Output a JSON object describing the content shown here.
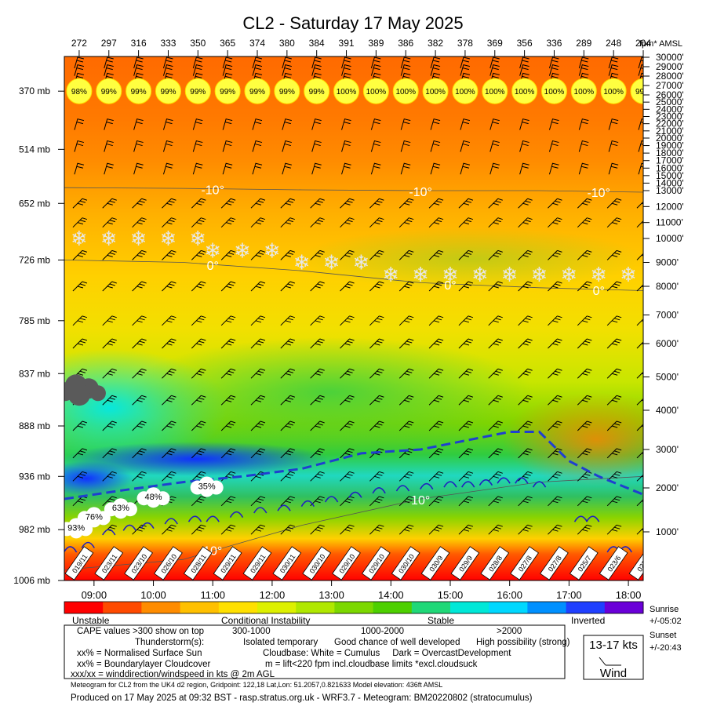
{
  "chart_data": {
    "type": "heatmap",
    "title": "CL2 - Saturday 17 May 2025",
    "top_values": [
      272,
      297,
      316,
      333,
      350,
      365,
      374,
      380,
      384,
      391,
      389,
      386,
      382,
      378,
      369,
      356,
      336,
      289,
      248,
      204
    ],
    "top_unit_label": "fpm* AMSL",
    "cloud_cover_pct": [
      "98%",
      "99%",
      "99%",
      "99%",
      "99%",
      "99%",
      "99%",
      "99%",
      "99%",
      "100%",
      "100%",
      "100%",
      "100%",
      "100%",
      "100%",
      "100%",
      "100%",
      "100%",
      "100%",
      "99%"
    ],
    "pressure_labels": [
      {
        "label": "370 mb",
        "ft": 26400
      },
      {
        "label": "514 mb",
        "ft": 18500
      },
      {
        "label": "652 mb",
        "ft": 12200
      },
      {
        "label": "726 mb",
        "ft": 9100
      },
      {
        "label": "785 mb",
        "ft": 6800
      },
      {
        "label": "837 mb",
        "ft": 5100
      },
      {
        "label": "888 mb",
        "ft": 3600
      },
      {
        "label": "936 mb",
        "ft": 2300
      },
      {
        "label": "982 mb",
        "ft": 1050
      },
      {
        "label": "1006 mb",
        "ft": 436
      }
    ],
    "altitude_ticks": [
      {
        "label": "30000'",
        "ft": 30000
      },
      {
        "label": "29000'",
        "ft": 29000
      },
      {
        "label": "28000'",
        "ft": 28000
      },
      {
        "label": "27000'",
        "ft": 27000
      },
      {
        "label": "26000'",
        "ft": 26000
      },
      {
        "label": "25000'",
        "ft": 25000
      },
      {
        "label": "24000'",
        "ft": 24000
      },
      {
        "label": "23000'",
        "ft": 23000
      },
      {
        "label": "22000'",
        "ft": 22000
      },
      {
        "label": "21000'",
        "ft": 21000
      },
      {
        "label": "20000'",
        "ft": 20000
      },
      {
        "label": "19000'",
        "ft": 19000
      },
      {
        "label": "18000'",
        "ft": 18000
      },
      {
        "label": "17000'",
        "ft": 17000
      },
      {
        "label": "16000'",
        "ft": 16000
      },
      {
        "label": "15000'",
        "ft": 15000
      },
      {
        "label": "14000'",
        "ft": 14000
      },
      {
        "label": "13000'",
        "ft": 13000
      },
      {
        "label": "12000'",
        "ft": 12000
      },
      {
        "label": "11000'",
        "ft": 11000
      },
      {
        "label": "10000'",
        "ft": 10000
      },
      {
        "label": "9000'",
        "ft": 9000
      },
      {
        "label": "8000'",
        "ft": 8000
      },
      {
        "label": "7000'",
        "ft": 7000
      },
      {
        "label": "6000'",
        "ft": 6000
      },
      {
        "label": "5000'",
        "ft": 5000
      },
      {
        "label": "4000'",
        "ft": 4000
      },
      {
        "label": "3000'",
        "ft": 3000
      },
      {
        "label": "2000'",
        "ft": 2000
      },
      {
        "label": "1000'",
        "ft": 1000
      }
    ],
    "time_labels": [
      "09:00",
      "10:00",
      "11:00",
      "12:00",
      "13:00",
      "14:00",
      "15:00",
      "16:00",
      "17:00",
      "18:00"
    ],
    "time_range": [
      8.5,
      18.25
    ],
    "surface_wind": [
      "019/11",
      "023/11",
      "023/10",
      "026/10",
      "028/11",
      "029/11",
      "029/11",
      "030/11",
      "030/10",
      "029/10",
      "029/10",
      "030/10",
      "030/9",
      "029/9",
      "028/8",
      "027/8",
      "027/8",
      "025/7",
      "023/6",
      "022/6"
    ],
    "isotherms": [
      {
        "label": "-10°",
        "points": [
          [
            8.5,
            13400
          ],
          [
            10.5,
            13300
          ],
          [
            12.5,
            13100
          ],
          [
            14.5,
            13000
          ],
          [
            16.5,
            13000
          ],
          [
            18.25,
            12900
          ]
        ],
        "label_times": [
          11.0,
          14.5,
          17.5
        ]
      },
      {
        "label": "0°",
        "points": [
          [
            8.5,
            9100
          ],
          [
            10.5,
            9000
          ],
          [
            12.5,
            8650
          ],
          [
            14.5,
            8150
          ],
          [
            16.5,
            7950
          ],
          [
            18.25,
            7850
          ]
        ],
        "label_times": [
          11.0,
          15.0,
          17.5
        ]
      },
      {
        "label": "10°",
        "points": [
          [
            8.5,
            560
          ],
          [
            10.5,
            680
          ],
          [
            12.5,
            1150
          ],
          [
            14.5,
            1750
          ],
          [
            16.5,
            2150
          ],
          [
            18.25,
            2300
          ]
        ],
        "label_times": [
          11.0,
          14.5
        ]
      }
    ],
    "blh_line": [
      [
        8.5,
        1750
      ],
      [
        9.5,
        1950
      ],
      [
        10.5,
        2150
      ],
      [
        11.5,
        2300
      ],
      [
        12.5,
        2500
      ],
      [
        13.5,
        2900
      ],
      [
        14.5,
        3000
      ],
      [
        15.5,
        3300
      ],
      [
        16.0,
        3450
      ],
      [
        16.5,
        3450
      ],
      [
        17.0,
        2700
      ],
      [
        17.5,
        2300
      ],
      [
        18.25,
        1850
      ]
    ],
    "blh_color": "#1f3fd0",
    "snow_flakes": [
      [
        8.75,
        10000
      ],
      [
        9.25,
        10000
      ],
      [
        9.75,
        10000
      ],
      [
        10.25,
        10000
      ],
      [
        10.75,
        10000
      ],
      [
        11.0,
        9500
      ],
      [
        11.5,
        9500
      ],
      [
        12.0,
        9500
      ],
      [
        12.5,
        9000
      ],
      [
        13.0,
        9000
      ],
      [
        13.5,
        9000
      ],
      [
        14.0,
        8500
      ],
      [
        14.5,
        8500
      ],
      [
        15.0,
        8500
      ],
      [
        15.5,
        8500
      ],
      [
        16.0,
        8500
      ],
      [
        16.5,
        8500
      ],
      [
        17.0,
        8500
      ],
      [
        17.5,
        8500
      ],
      [
        18.0,
        8500
      ]
    ],
    "cumulus_labels": [
      {
        "label": "35%",
        "time": 10.9,
        "ft": 2050
      },
      {
        "label": "48%",
        "time": 10.0,
        "ft": 1800
      },
      {
        "label": "63%",
        "time": 9.45,
        "ft": 1550
      },
      {
        "label": "76%",
        "time": 9.0,
        "ft": 1350
      },
      {
        "label": "93%",
        "time": 8.7,
        "ft": 1100
      }
    ],
    "dark_cloud": {
      "time": 8.75,
      "ft": 4700
    },
    "thermal_arcs": [
      [
        [
          8.6,
          800
        ],
        [
          8.9,
          850
        ]
      ],
      [
        [
          9.25,
          1000
        ],
        [
          9.6,
          1100
        ],
        [
          9.9,
          1150
        ],
        [
          10.3,
          1250
        ],
        [
          10.7,
          1300
        ],
        [
          11.0,
          1300
        ],
        [
          11.4,
          1400
        ],
        [
          11.8,
          1500
        ],
        [
          12.2,
          1550
        ],
        [
          12.6,
          1650
        ],
        [
          13.0,
          1750
        ],
        [
          13.4,
          1850
        ],
        [
          13.8,
          1950
        ],
        [
          14.2,
          2000
        ],
        [
          14.6,
          2050
        ],
        [
          15.0,
          2100
        ],
        [
          15.3,
          2100
        ],
        [
          15.6,
          2150
        ],
        [
          15.9,
          2200
        ],
        [
          16.2,
          2200
        ],
        [
          16.5,
          2100
        ]
      ],
      [
        [
          17.2,
          1300
        ],
        [
          17.4,
          1300
        ]
      ],
      [
        [
          17.75,
          800
        ],
        [
          17.95,
          800
        ]
      ]
    ],
    "colorbar_colors": [
      "#ff0000",
      "#ff4a00",
      "#ff8c00",
      "#ffc000",
      "#ffe000",
      "#ddf000",
      "#b0e800",
      "#7cd800",
      "#4dd000",
      "#20d878",
      "#00e8d8",
      "#00d8ff",
      "#0090ff",
      "#2040ff",
      "#6a00d8"
    ],
    "colorbar_labels": {
      "unstable": "Unstable",
      "conditional": "Conditional Instability",
      "stable": "Stable",
      "inverted": "Inverted"
    },
    "legend": {
      "cape": "CAPE values >300 show on top",
      "cape_ranges": [
        "300-1000",
        "1000-2000",
        ">2000"
      ],
      "thunder_label": "Thunderstorm(s):",
      "thunder_levels": [
        "Isolated temporary",
        "Good chance of well developed",
        "High possibility (strong)"
      ],
      "surface_sun": "xx% = Normalised Surface Sun",
      "cloudbase": "Cloudbase: White = Cumulus     Dark = OvercastDevelopment",
      "bl_cloud": "xx% = Boundarylayer Cloudcover",
      "lift": "m = lift<220 fpm incl.cloudbase limits *excl.cloudsuck",
      "wind_note": "xxx/xx = winddirection/windspeed in kts @ 2m AGL",
      "wind_box_value": "13-17 kts",
      "wind_box_label": "Wind"
    },
    "sun": {
      "sunrise_label": "Sunrise",
      "sunrise_value": "+/-05:02",
      "sunset_label": "Sunset",
      "sunset_value": "+/-20:43"
    },
    "footer_small": "Meteogram for CL2 from the UK4 d2 region, Gridpoint: 122,18 Lat,Lon: 51.2057,0.821633 Model elevation: 436ft AMSL",
    "footer_main": "Produced on 17 May 2025 at 09:32 BST - rasp.stratus.org.uk - WRF3.7 - Meteogram: BM20220802 (stratocumulus)"
  }
}
